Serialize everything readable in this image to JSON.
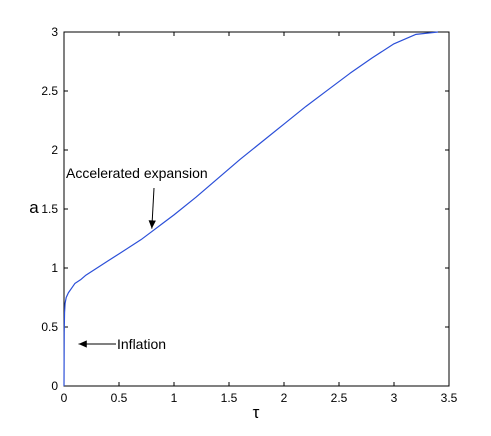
{
  "chart_data": {
    "type": "line",
    "title": "",
    "xlabel": "τ",
    "ylabel": "a",
    "xlim": [
      0,
      3.5
    ],
    "ylim": [
      0,
      3
    ],
    "xticks": [
      0,
      0.5,
      1,
      1.5,
      2,
      2.5,
      3,
      3.5
    ],
    "xtick_labels": [
      "0",
      "0.5",
      "1",
      "1.5",
      "2",
      "2.5",
      "3",
      "3.5"
    ],
    "yticks": [
      0,
      0.5,
      1,
      1.5,
      2,
      2.5,
      3
    ],
    "ytick_labels": [
      "0",
      "0.5",
      "1",
      "1.5",
      "2",
      "2.5",
      "3"
    ],
    "grid": false,
    "series": [
      {
        "color": "#2b4fd8",
        "x": [
          0,
          0.002,
          0.005,
          0.01,
          0.02,
          0.04,
          0.07,
          0.1,
          0.15,
          0.2,
          0.3,
          0.4,
          0.5,
          0.6,
          0.7,
          0.8,
          0.9,
          1.0,
          1.2,
          1.4,
          1.6,
          1.8,
          2.0,
          2.2,
          2.4,
          2.6,
          2.8,
          3.0,
          3.2,
          3.4
        ],
        "y": [
          0,
          0.45,
          0.62,
          0.7,
          0.75,
          0.79,
          0.83,
          0.87,
          0.9,
          0.94,
          1.0,
          1.06,
          1.12,
          1.18,
          1.24,
          1.31,
          1.38,
          1.45,
          1.6,
          1.76,
          1.92,
          2.07,
          2.22,
          2.37,
          2.51,
          2.65,
          2.78,
          2.9,
          2.98,
          3.0
        ]
      }
    ],
    "annotations": [
      {
        "text": "Accelerated expansion",
        "point": [
          0.78,
          1.3
        ]
      },
      {
        "text": "Inflation",
        "point": [
          0.005,
          0.38
        ]
      }
    ]
  }
}
